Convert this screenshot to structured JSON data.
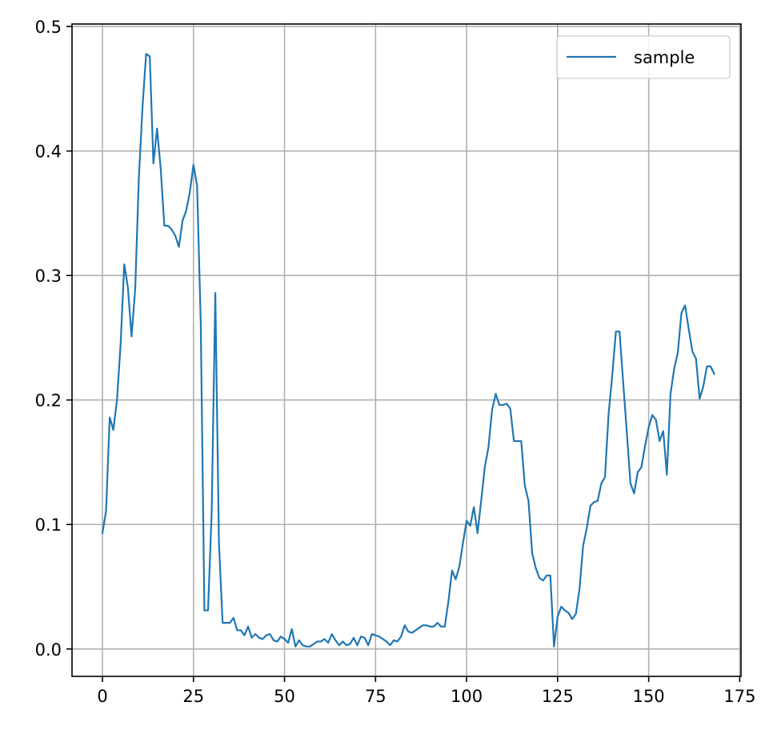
{
  "chart_data": {
    "type": "line",
    "title": "",
    "xlabel": "",
    "ylabel": "",
    "xlim": [
      -8.35,
      175.35
    ],
    "ylim": [
      -0.022,
      0.502
    ],
    "xticks": [
      0,
      25,
      50,
      75,
      100,
      125,
      150,
      175
    ],
    "yticks": [
      0.0,
      0.1,
      0.2,
      0.3,
      0.4,
      0.5
    ],
    "xtick_labels": [
      "0",
      "25",
      "50",
      "75",
      "100",
      "125",
      "150",
      "175"
    ],
    "ytick_labels": [
      "0.0",
      "0.1",
      "0.2",
      "0.3",
      "0.4",
      "0.5"
    ],
    "grid": true,
    "legend_position": "top-right",
    "series": [
      {
        "name": "sample",
        "color": "#1f77b4",
        "x_start": 0,
        "x_step": 1,
        "values": [
          0.093,
          0.111,
          0.186,
          0.176,
          0.2,
          0.245,
          0.309,
          0.29,
          0.251,
          0.289,
          0.378,
          0.435,
          0.478,
          0.476,
          0.39,
          0.418,
          0.386,
          0.34,
          0.34,
          0.337,
          0.332,
          0.323,
          0.344,
          0.352,
          0.367,
          0.389,
          0.372,
          0.262,
          0.031,
          0.031,
          0.11,
          0.286,
          0.085,
          0.021,
          0.021,
          0.021,
          0.025,
          0.015,
          0.015,
          0.011,
          0.018,
          0.009,
          0.012,
          0.009,
          0.008,
          0.011,
          0.012,
          0.007,
          0.006,
          0.01,
          0.008,
          0.005,
          0.016,
          0.002,
          0.007,
          0.003,
          0.002,
          0.002,
          0.004,
          0.006,
          0.006,
          0.008,
          0.005,
          0.012,
          0.007,
          0.003,
          0.006,
          0.003,
          0.004,
          0.009,
          0.003,
          0.01,
          0.009,
          0.003,
          0.012,
          0.011,
          0.01,
          0.008,
          0.006,
          0.003,
          0.007,
          0.006,
          0.01,
          0.019,
          0.014,
          0.013,
          0.015,
          0.017,
          0.019,
          0.019,
          0.018,
          0.018,
          0.021,
          0.018,
          0.018,
          0.038,
          0.063,
          0.056,
          0.066,
          0.085,
          0.103,
          0.099,
          0.114,
          0.093,
          0.119,
          0.146,
          0.162,
          0.192,
          0.205,
          0.196,
          0.196,
          0.197,
          0.193,
          0.167,
          0.167,
          0.167,
          0.131,
          0.119,
          0.077,
          0.065,
          0.057,
          0.055,
          0.059,
          0.059,
          0.002,
          0.026,
          0.034,
          0.031,
          0.029,
          0.024,
          0.028,
          0.048,
          0.083,
          0.097,
          0.115,
          0.118,
          0.119,
          0.133,
          0.138,
          0.189,
          0.22,
          0.255,
          0.255,
          0.214,
          0.174,
          0.133,
          0.125,
          0.142,
          0.146,
          0.163,
          0.178,
          0.188,
          0.184,
          0.167,
          0.175,
          0.14,
          0.205,
          0.225,
          0.238,
          0.27,
          0.276,
          0.257,
          0.239,
          0.233,
          0.201,
          0.211,
          0.227,
          0.227,
          0.221
        ]
      }
    ]
  }
}
